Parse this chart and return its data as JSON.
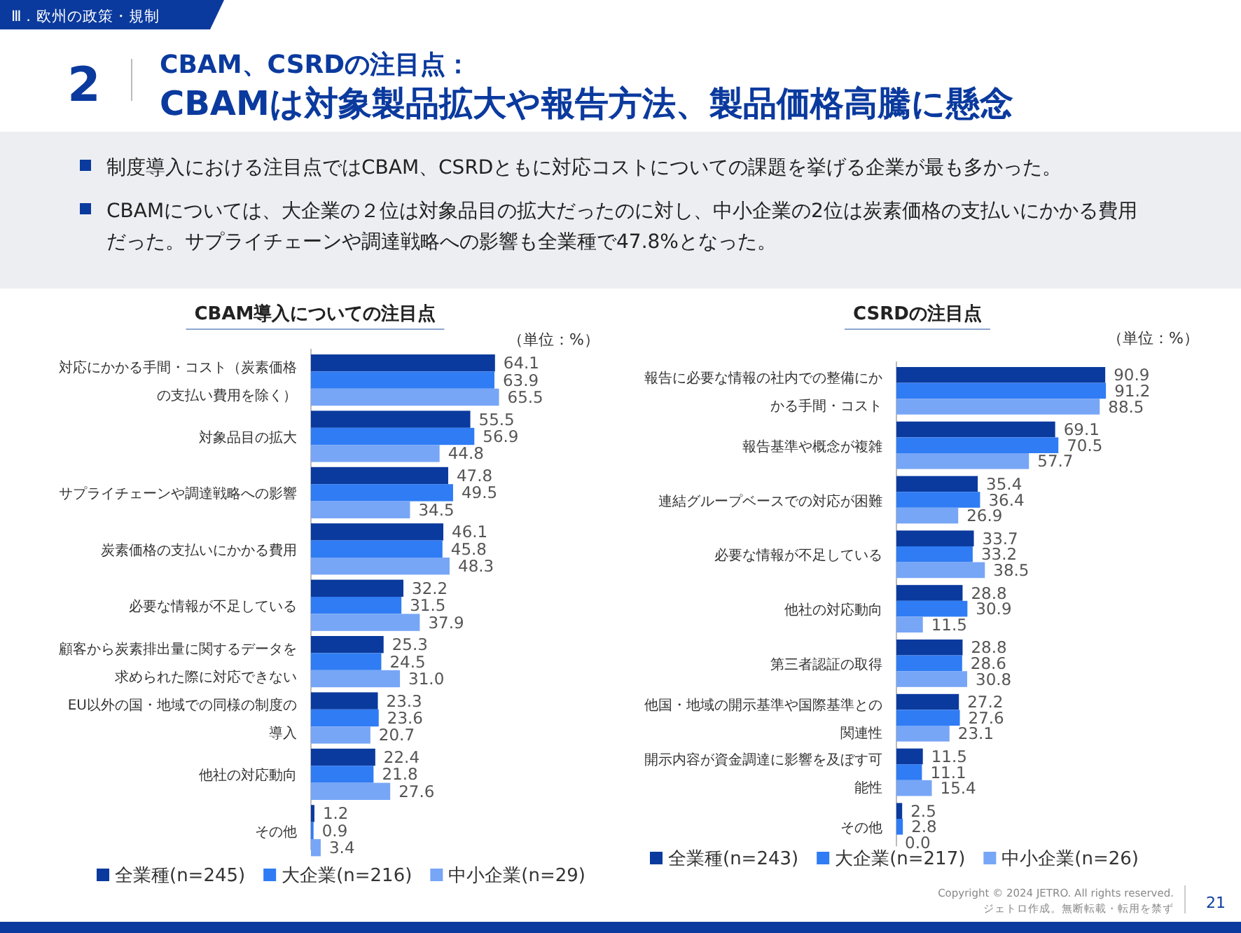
{
  "chart_data": [
    {
      "type": "bar",
      "orientation": "horizontal",
      "title": "CBAM導入についての注目点",
      "legend": "bottom",
      "categories": [
        "対応にかかる手間・コスト（炭素価格の支払い費用を除く）",
        "対象品目の拡大",
        "サプライチェーンや調達戦略への影響",
        "炭素価格の支払いにかかる費用",
        "必要な情報が不足している",
        "顧客から炭素排出量に関するデータを求められた際に対応できない",
        "EU以外の国・地域での同様の制度の導入",
        "他社の対応動向",
        "その他"
      ],
      "series": [
        {
          "name": "全業種(n=245)",
          "color": "#0b3a9e",
          "values": [
            64.1,
            55.5,
            47.8,
            46.1,
            32.2,
            25.3,
            23.3,
            22.4,
            1.2
          ],
          "value_labels": [
            "64.1",
            "55.5",
            "47.8",
            "46.1",
            "32.2",
            "25.3",
            "23.3",
            "22.4",
            "1.2"
          ]
        },
        {
          "name": "大企業(n=216)",
          "color": "#2f7cf4",
          "values": [
            63.9,
            56.9,
            49.5,
            45.8,
            31.5,
            24.5,
            23.6,
            21.8,
            0.9
          ],
          "value_labels": [
            "63.9",
            "56.9",
            "49.5",
            "45.8",
            "31.5",
            "24.5",
            "23.6",
            "21.8",
            "0.9"
          ]
        },
        {
          "name": "中小企業(n=29)",
          "color": "#77a6f6",
          "values": [
            65.5,
            44.8,
            34.5,
            48.3,
            37.9,
            31.0,
            20.7,
            27.6,
            3.4
          ],
          "value_labels": [
            "65.5",
            "44.8",
            "34.5",
            "48.3",
            "37.9",
            "31.0",
            "20.7",
            "27.6",
            "3.4"
          ]
        }
      ],
      "annotations": [
        "Ⅲ．欧州の政策・規制",
        "2",
        "CBAM、CSRDの注目点：",
        "CBAMは対象製品拡大や報告方法、製品価格高騰に懸念",
        "制度導入における注目点ではCBAM、CSRDともに対応コストについての課題を挙げる企業が最も多かった。",
        "CBAMについては、大企業の２位は対象品目の拡大だったのに対し、中小企業の2位は炭素価格の支払いにかかる費用だった。サプライチェーンや調達戦略への影響も全業種で47.8%となった。",
        "（単位：%）"
      ]
    },
    {
      "type": "bar",
      "orientation": "horizontal",
      "title": "CSRDの注目点",
      "legend": "bottom",
      "categories": [
        "報告に必要な情報の社内での整備にかかる手間・コスト",
        "報告基準や概念が複雑",
        "連結グループベースでの対応が困難",
        "必要な情報が不足している",
        "他社の対応動向",
        "第三者認証の取得",
        "他国・地域の開示基準や国際基準との関連性",
        "開示内容が資金調達に影響を及ぼす可能性",
        "その他"
      ],
      "series": [
        {
          "name": "全業種(n=243)",
          "color": "#0b3a9e",
          "values": [
            90.9,
            69.1,
            35.4,
            33.7,
            28.8,
            28.8,
            27.2,
            11.5,
            2.5
          ],
          "value_labels": [
            "90.9",
            "69.1",
            "35.4",
            "33.7",
            "28.8",
            "28.8",
            "27.2",
            "11.5",
            "2.5"
          ]
        },
        {
          "name": "大企業(n=217)",
          "color": "#2f7cf4",
          "values": [
            91.2,
            70.5,
            36.4,
            33.2,
            30.9,
            28.6,
            27.6,
            11.1,
            2.8
          ],
          "value_labels": [
            "91.2",
            "70.5",
            "36.4",
            "33.2",
            "30.9",
            "28.6",
            "27.6",
            "11.1",
            "2.8"
          ]
        },
        {
          "name": "中小企業(n=26)",
          "color": "#77a6f6",
          "values": [
            88.5,
            57.7,
            26.9,
            38.5,
            11.5,
            30.8,
            23.1,
            15.4,
            0.0
          ],
          "value_labels": [
            "88.5",
            "57.7",
            "26.9",
            "38.5",
            "11.5",
            "30.8",
            "23.1",
            "15.4",
            "0.0"
          ]
        }
      ],
      "annotations": [
        "（単位：%）",
        "Copyright © 2024 JETRO. All rights reserved.",
        "ジェトロ作成。無断転載・転用を禁ず",
        "21"
      ]
    }
  ]
}
